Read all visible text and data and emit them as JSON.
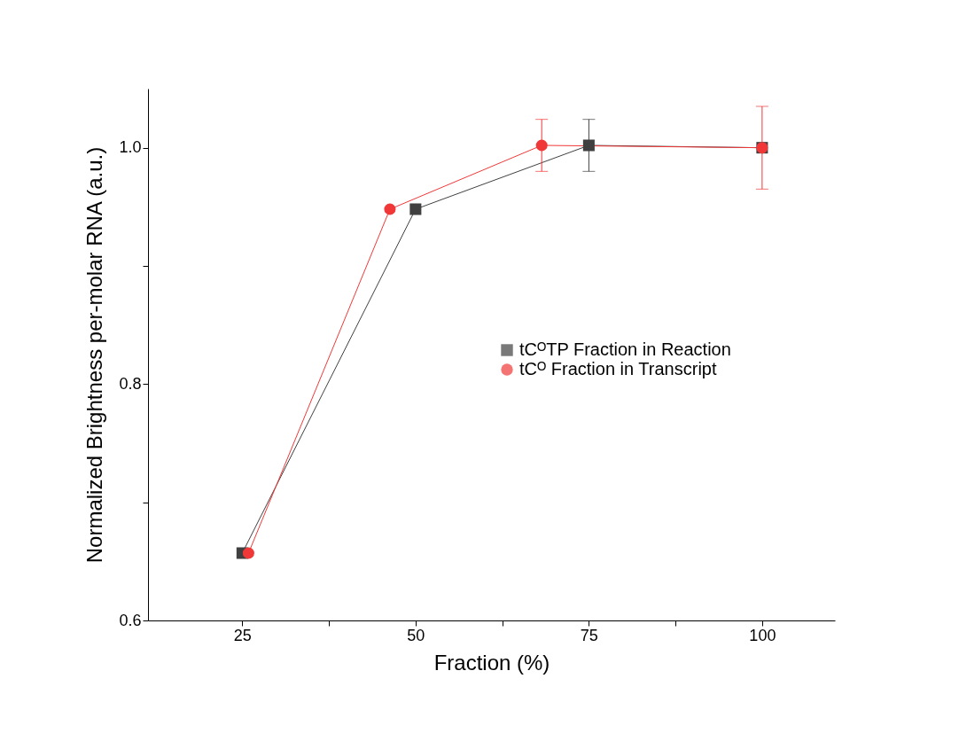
{
  "chart_data": {
    "type": "line",
    "xlabel": "Fraction (%)",
    "ylabel": "Normalized Brightness per-molar RNA (a.u.)",
    "xlim": [
      11.4,
      110.5
    ],
    "ylim": [
      0.6,
      1.05
    ],
    "xticks": [
      25,
      {
        "value": 37.5,
        "label": null
      },
      50,
      {
        "value": 62.5,
        "label": null
      },
      75,
      {
        "value": 87.5,
        "label": null
      },
      100
    ],
    "yticks": [
      0.6,
      {
        "value": 0.7,
        "label": null
      },
      0.8,
      {
        "value": 0.9,
        "label": null
      },
      {
        "value": 1.0,
        "label": "1.0"
      }
    ],
    "grid": false,
    "legend": "right",
    "series": [
      {
        "name": "tCᴼTP Fraction in Reaction",
        "color": "#404040",
        "marker": "square",
        "x": [
          25,
          50,
          75,
          100
        ],
        "values": [
          0.657,
          0.948,
          1.002,
          1.0
        ],
        "errors": [
          null,
          null,
          0.022,
          null
        ]
      },
      {
        "name": "tCᴼ Fraction in Transcript",
        "color": "#f03838",
        "marker": "circle",
        "x": [
          25.9,
          46.3,
          68.2,
          100
        ],
        "values": [
          0.657,
          0.948,
          1.002,
          1.0
        ],
        "errors": [
          null,
          null,
          0.022,
          0.035
        ]
      }
    ]
  }
}
